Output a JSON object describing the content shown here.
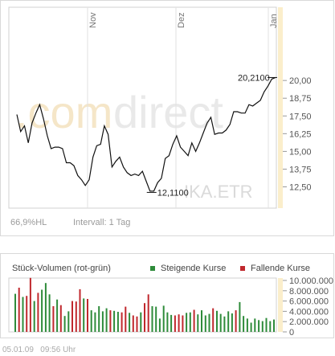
{
  "chart_data": [
    {
      "type": "line",
      "months": [
        "Nov",
        "Dez",
        "Jan"
      ],
      "symbol": "IKA.ETR",
      "watermark_left": ".com",
      "watermark_right": "direct",
      "footer_left": "66,9%HL",
      "footer_interval": "Intervall: 1 Tag",
      "ylim": [
        11.0,
        21.0
      ],
      "ticks": [
        {
          "value": 20.0,
          "label": "20,00"
        },
        {
          "value": 18.75,
          "label": "18,75"
        },
        {
          "value": 17.5,
          "label": "17,50"
        },
        {
          "value": 16.25,
          "label": "16,25"
        },
        {
          "value": 15.0,
          "label": "15,00"
        },
        {
          "value": 13.75,
          "label": "13,75"
        },
        {
          "value": 12.5,
          "label": "12,50"
        }
      ],
      "annotations": [
        {
          "label": "12,1100",
          "value": 12.11
        },
        {
          "label": "20,2100",
          "value": 20.21
        }
      ],
      "values": [
        17.6,
        16.4,
        16.8,
        15.6,
        17.0,
        17.7,
        18.3,
        17.3,
        16.1,
        15.2,
        15.3,
        15.3,
        15.2,
        14.2,
        14.2,
        14.0,
        13.3,
        13.0,
        12.6,
        13.0,
        14.6,
        15.4,
        15.5,
        16.8,
        16.2,
        13.9,
        14.3,
        14.6,
        13.9,
        13.5,
        13.3,
        13.4,
        13.3,
        13.6,
        12.9,
        12.2,
        12.2,
        12.8,
        13.1,
        14.5,
        14.7,
        15.5,
        16.1,
        15.3,
        15.0,
        14.7,
        15.6,
        15.0,
        15.6,
        16.3,
        17.0,
        17.4,
        16.2,
        16.3,
        16.3,
        16.5,
        16.9,
        17.8,
        17.8,
        17.7,
        17.7,
        18.3,
        18.2,
        18.4,
        18.6,
        19.2,
        19.6,
        20.1,
        20.21
      ]
    },
    {
      "type": "bar",
      "title": "Stück-Volumen (rot-grün)",
      "legend": [
        {
          "name": "Steigende Kurse",
          "color": "#2e8b3a"
        },
        {
          "name": "Fallende Kurse",
          "color": "#c0282d"
        }
      ],
      "ylim": [
        0,
        10000000
      ],
      "ticks": [
        {
          "value": 10000000,
          "label": "10.000.000"
        },
        {
          "value": 8000000,
          "label": "8.000.000"
        },
        {
          "value": 6000000,
          "label": "6.000.000"
        },
        {
          "value": 4000000,
          "label": "4.000.000"
        },
        {
          "value": 2000000,
          "label": "2.000.000"
        },
        {
          "value": 0,
          "label": "0"
        }
      ],
      "values": [
        7400000,
        8600000,
        6800000,
        7000000,
        10500000,
        6000000,
        7600000,
        8200000,
        9500000,
        7300000,
        5000000,
        6300000,
        5200000,
        3100000,
        4000000,
        6000000,
        5900000,
        8300000,
        6500000,
        6400000,
        4200000,
        3800000,
        5000000,
        4000000,
        4600000,
        4200000,
        4100000,
        3900000,
        3800000,
        4900000,
        3700000,
        3200000,
        3000000,
        3800000,
        5600000,
        7300000,
        5000000,
        4900000,
        2600000,
        5100000,
        3800000,
        3300000,
        3200000,
        3400000,
        3200000,
        3700000,
        3800000,
        4300000,
        3400000,
        4200000,
        3200000,
        3500000,
        4600000,
        4100000,
        3500000,
        3000000,
        4000000,
        3600000,
        4200000,
        5800000,
        3100000,
        2600000,
        1800000,
        2600000,
        2300000,
        2100000,
        2700000,
        2100000,
        2400000
      ],
      "directions": [
        "up",
        "down",
        "up",
        "down",
        "down",
        "up",
        "down",
        "up",
        "up",
        "up",
        "down",
        "up",
        "down",
        "up",
        "up",
        "down",
        "down",
        "down",
        "up",
        "down",
        "up",
        "up",
        "up",
        "up",
        "up",
        "down",
        "up",
        "up",
        "down",
        "down",
        "up",
        "down",
        "down",
        "up",
        "down",
        "down",
        "up",
        "up",
        "up",
        "up",
        "up",
        "up",
        "down",
        "down",
        "down",
        "up",
        "up",
        "down",
        "up",
        "up",
        "up",
        "up",
        "down",
        "up",
        "up",
        "up",
        "up",
        "up",
        "down",
        "up",
        "up",
        "up",
        "up",
        "up",
        "up",
        "up",
        "up",
        "up",
        "up"
      ]
    }
  ]
}
